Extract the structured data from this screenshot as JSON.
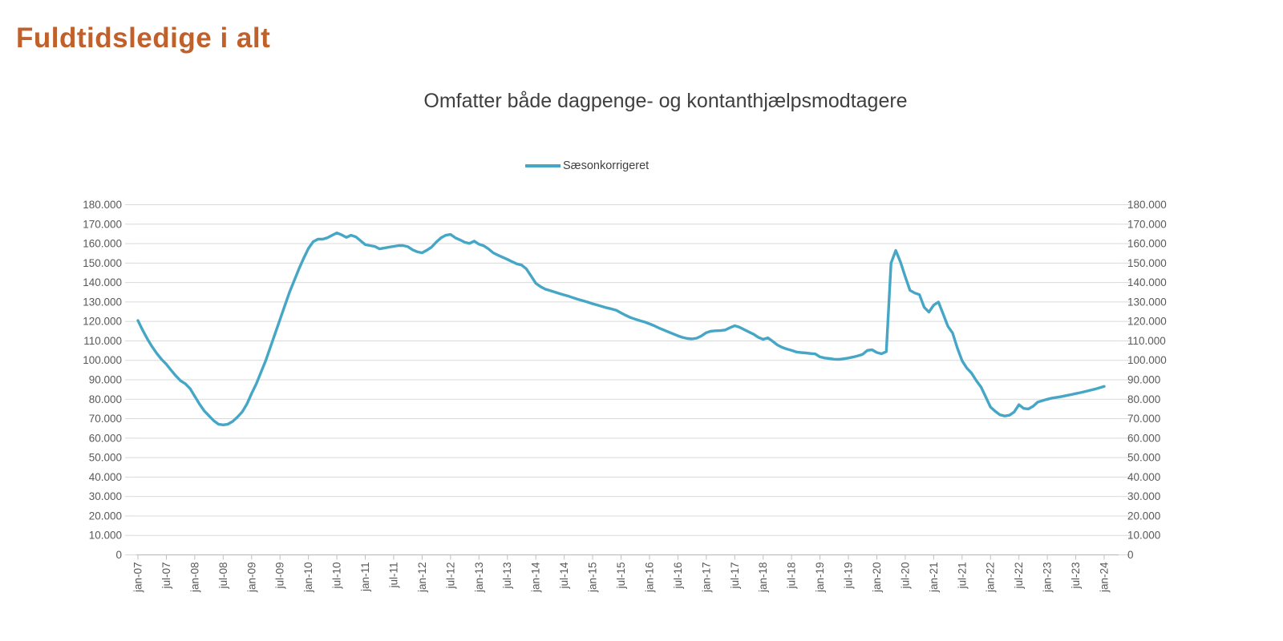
{
  "page": {
    "title": "Fuldtidsledige i alt"
  },
  "colors": {
    "title": "#C0602B",
    "subtitle": "#3F3F3F",
    "line": "#45A6C5",
    "grid": "#D9D9D9",
    "axis_line": "#BFBFBF",
    "axis_text": "#595959"
  },
  "chart_data": {
    "type": "line",
    "title": "Omfatter både dagpenge- og kontanthjælpsmodtagere",
    "legend_position": "top-center",
    "grid": "horizontal",
    "dual_y_axis": true,
    "ylim": [
      0,
      180000
    ],
    "y_tick_step": 10000,
    "y_tick_labels": [
      "0",
      "10.000",
      "20.000",
      "30.000",
      "40.000",
      "50.000",
      "60.000",
      "70.000",
      "80.000",
      "90.000",
      "100.000",
      "110.000",
      "120.000",
      "130.000",
      "140.000",
      "150.000",
      "160.000",
      "170.000",
      "180.000"
    ],
    "x_tick_labels": [
      "jan-07",
      "jul-07",
      "jan-08",
      "jul-08",
      "jan-09",
      "jul-09",
      "jan-10",
      "jul-10",
      "jan-11",
      "jul-11",
      "jan-12",
      "jul-12",
      "jan-13",
      "jul-13",
      "jan-14",
      "jul-14",
      "jan-15",
      "jul-15",
      "jan-16",
      "jul-16",
      "jan-17",
      "jul-17",
      "jan-18",
      "jul-18",
      "jan-19",
      "jul-19",
      "jan-20",
      "jul-20",
      "jan-21",
      "jul-21",
      "jan-22",
      "jul-22",
      "jan-23",
      "jul-23",
      "jan-24"
    ],
    "x_start": "jan-07",
    "x_end": "jan-24",
    "x_interval": "monthly",
    "series": [
      {
        "name": "Sæsonkorrigeret",
        "color": "#45A6C5",
        "values": [
          120500,
          115500,
          111000,
          107000,
          103500,
          100500,
          98000,
          95000,
          92000,
          89500,
          88000,
          85500,
          81500,
          77500,
          74000,
          71500,
          69000,
          67200,
          66800,
          67200,
          68600,
          70800,
          73500,
          77500,
          83000,
          88000,
          94000,
          100000,
          107000,
          114000,
          121000,
          128000,
          135000,
          141000,
          147000,
          152500,
          157500,
          161000,
          162300,
          162300,
          163000,
          164300,
          165500,
          164500,
          163200,
          164300,
          163500,
          161500,
          159500,
          159000,
          158600,
          157300,
          157700,
          158200,
          158600,
          159000,
          159000,
          158400,
          156800,
          155800,
          155300,
          156600,
          158200,
          160800,
          163000,
          164300,
          164700,
          163000,
          161900,
          160700,
          160100,
          161300,
          159700,
          158900,
          157300,
          155300,
          154100,
          153000,
          151900,
          150700,
          149600,
          149000,
          147000,
          143400,
          139600,
          137900,
          136600,
          135900,
          135100,
          134300,
          133600,
          132900,
          132100,
          131300,
          130600,
          129900,
          129100,
          128400,
          127700,
          127000,
          126400,
          125700,
          124400,
          123100,
          122000,
          121200,
          120400,
          119700,
          118800,
          117800,
          116600,
          115600,
          114600,
          113600,
          112600,
          111800,
          111200,
          111000,
          111400,
          112600,
          114200,
          115000,
          115200,
          115300,
          115600,
          116800,
          117800,
          117000,
          115800,
          114600,
          113400,
          111800,
          110800,
          111600,
          109800,
          107900,
          106700,
          105800,
          105100,
          104300,
          104000,
          103800,
          103500,
          103300,
          101800,
          101200,
          100900,
          100600,
          100500,
          100800,
          101200,
          101700,
          102300,
          103100,
          105100,
          105400,
          104000,
          103400,
          104500,
          150000,
          156500,
          150500,
          143000,
          136000,
          134600,
          133800,
          127300,
          124800,
          128400,
          130000,
          123800,
          117500,
          114000,
          106300,
          99800,
          96000,
          93400,
          89600,
          86300,
          81200,
          76000,
          73800,
          72000,
          71400,
          71800,
          73500,
          77200,
          75300,
          75000,
          76400,
          78600,
          79300,
          80000,
          80600,
          81000,
          81400,
          81900,
          82400,
          82900,
          83400,
          84000,
          84600,
          85200,
          85900,
          86600
        ]
      }
    ]
  }
}
